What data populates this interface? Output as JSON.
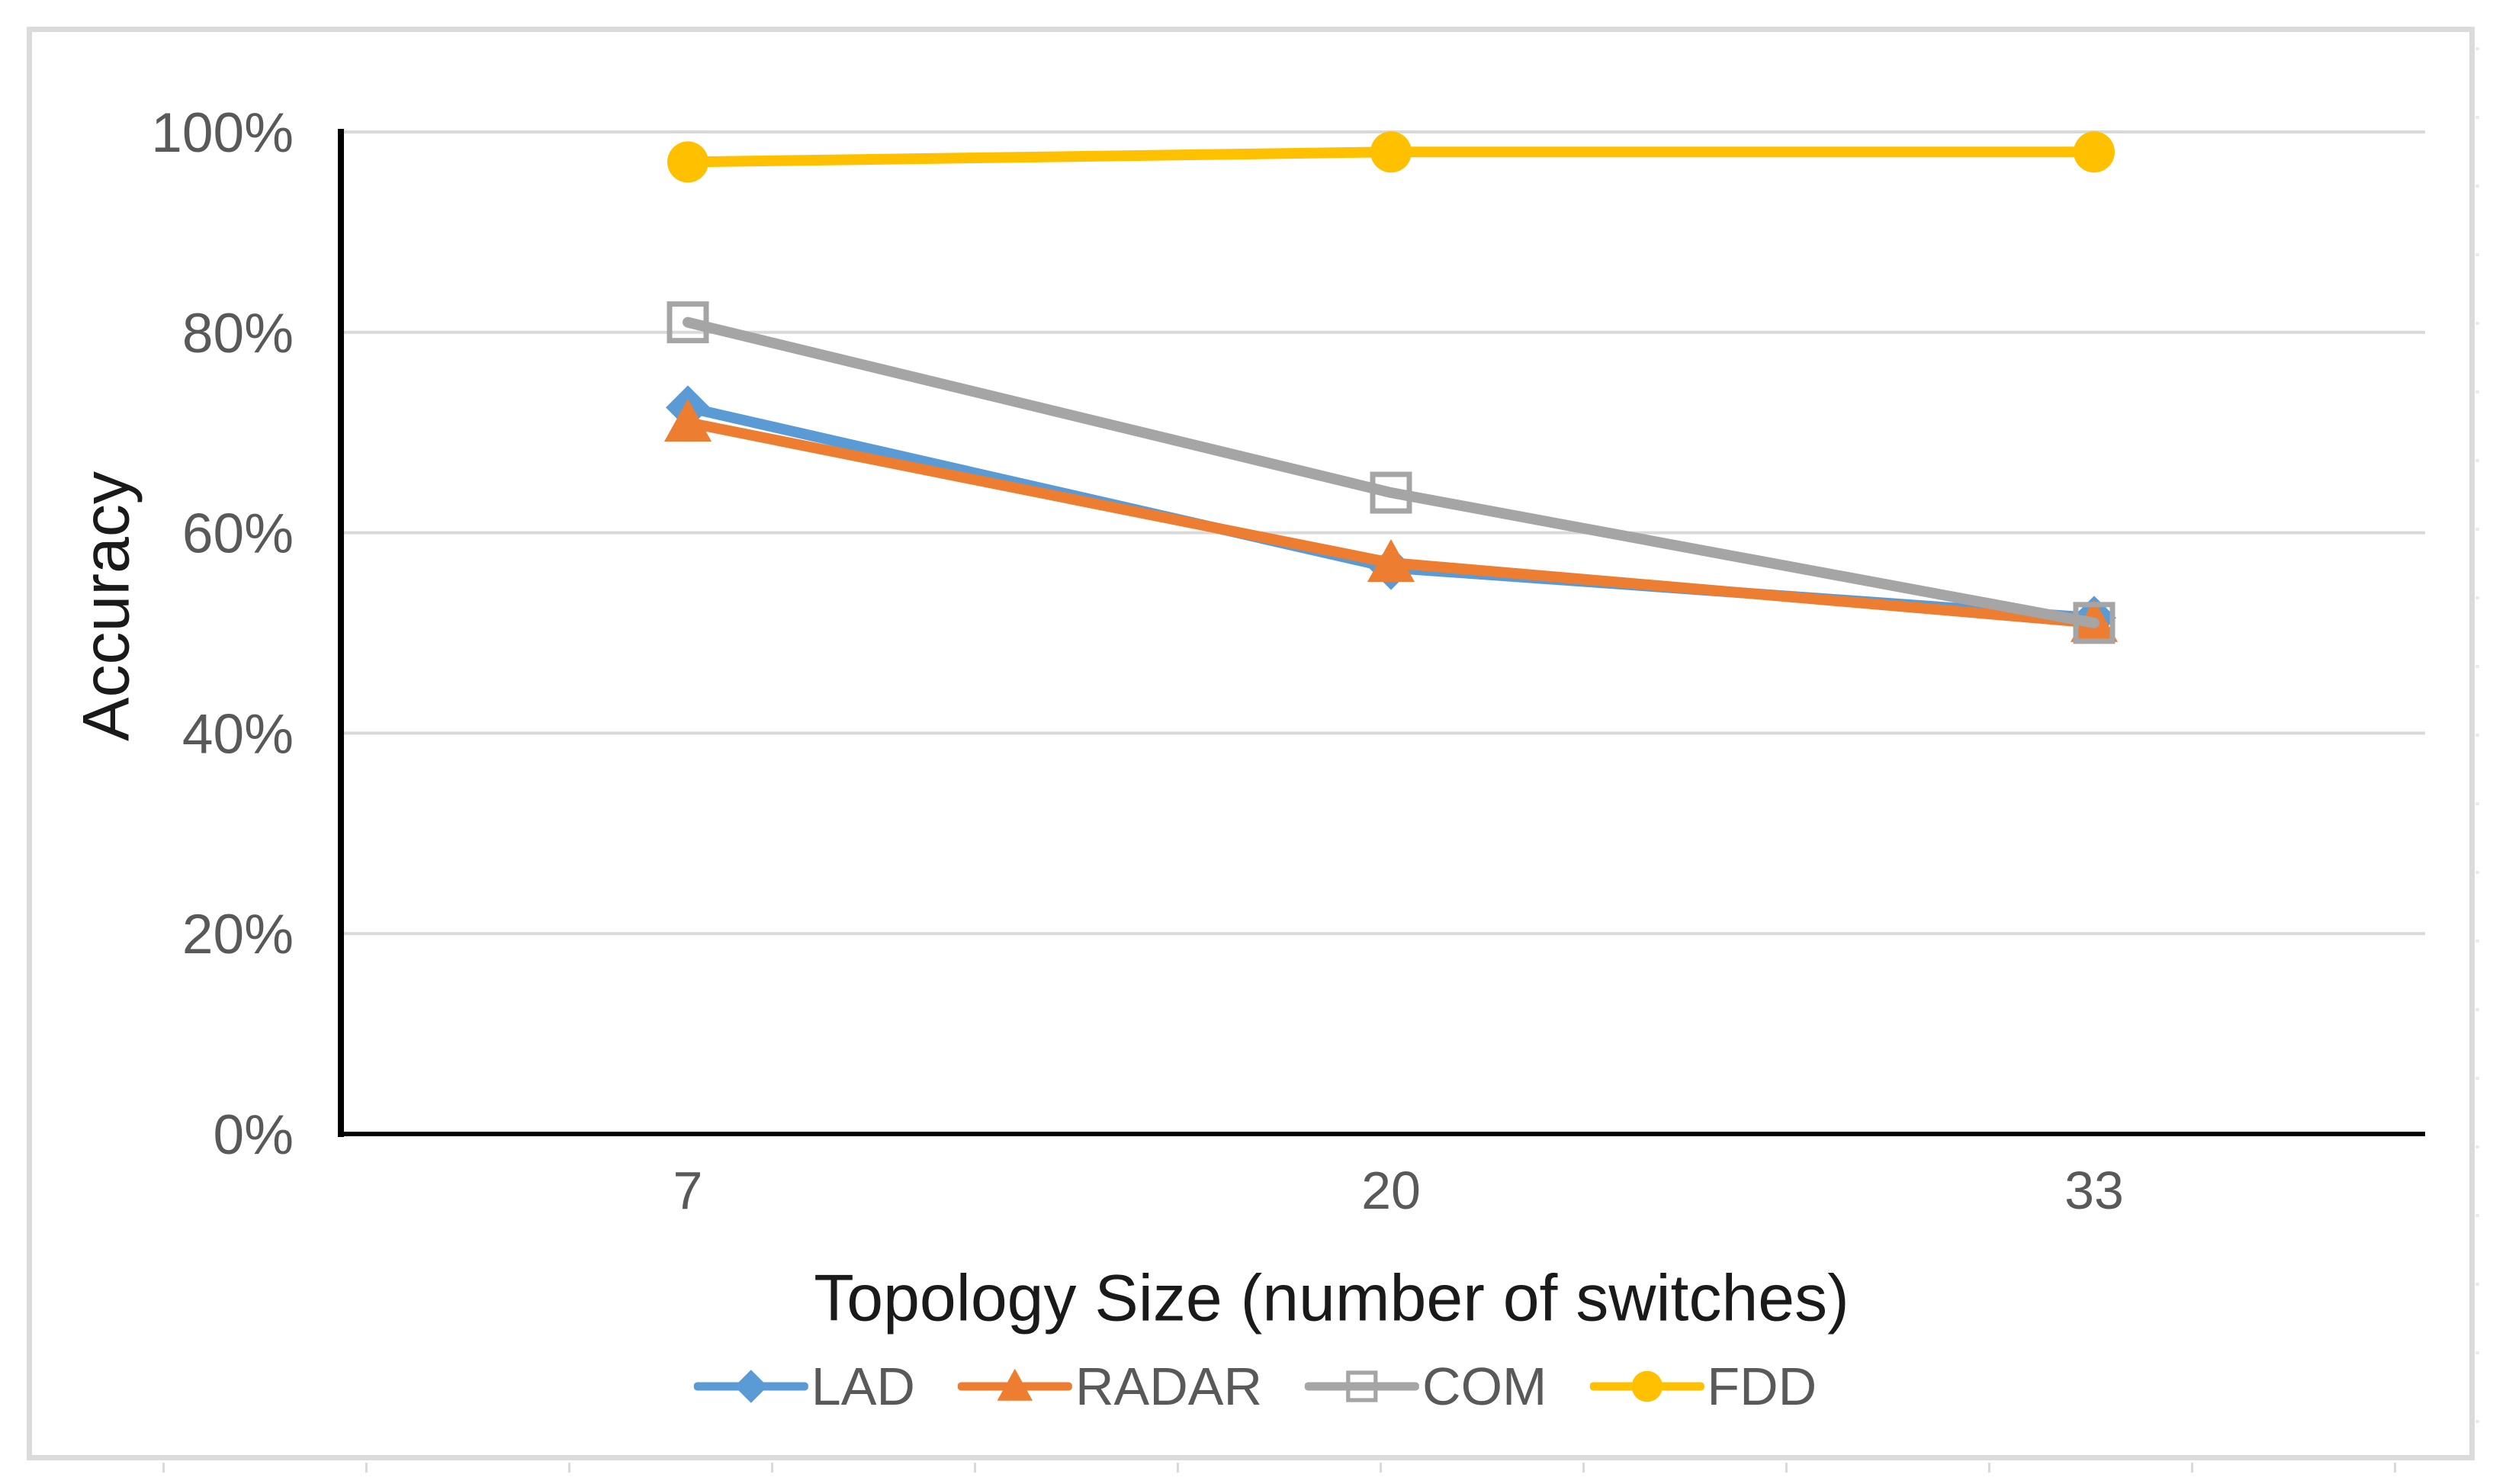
{
  "figure": {
    "x_axis_title": "Topology Size (number of switches)",
    "y_axis_title": "Accuracy"
  },
  "chart_data": {
    "type": "line",
    "title": "",
    "xlabel": "Topology Size (number of switches)",
    "ylabel": "Accuracy",
    "categories": [
      "7",
      "20",
      "33"
    ],
    "y_tick_labels": [
      "100%",
      "80%",
      "60%",
      "40%",
      "20%",
      "0%"
    ],
    "ylim": [
      0,
      100
    ],
    "y_unit": "percent accuracy",
    "grid": "horizontal",
    "legend_position": "bottom",
    "series": [
      {
        "name": "LAD",
        "marker": "diamond",
        "color": "#5B9BD5",
        "values": [
          72.5,
          56.5,
          51.5
        ]
      },
      {
        "name": "RADAR",
        "marker": "triangle",
        "color": "#ED7D31",
        "values": [
          71,
          57,
          51
        ]
      },
      {
        "name": "COM",
        "marker": "square-open",
        "color": "#A5A5A5",
        "values": [
          81,
          64,
          51
        ]
      },
      {
        "name": "FDD",
        "marker": "circle",
        "color": "#FFC000",
        "values": [
          97,
          98,
          98
        ]
      }
    ]
  },
  "colors": {
    "gridline": "#D9D9D9",
    "axis": "#000000",
    "tick_label": "#595959",
    "axis_title": "#1A1A1A",
    "legend_label": "#595959",
    "frame_border": "#DBDBDB",
    "series_blue": "#5B9BD5",
    "series_orange": "#ED7D31",
    "series_gray": "#A5A5A5",
    "series_yellow": "#FFC000"
  }
}
